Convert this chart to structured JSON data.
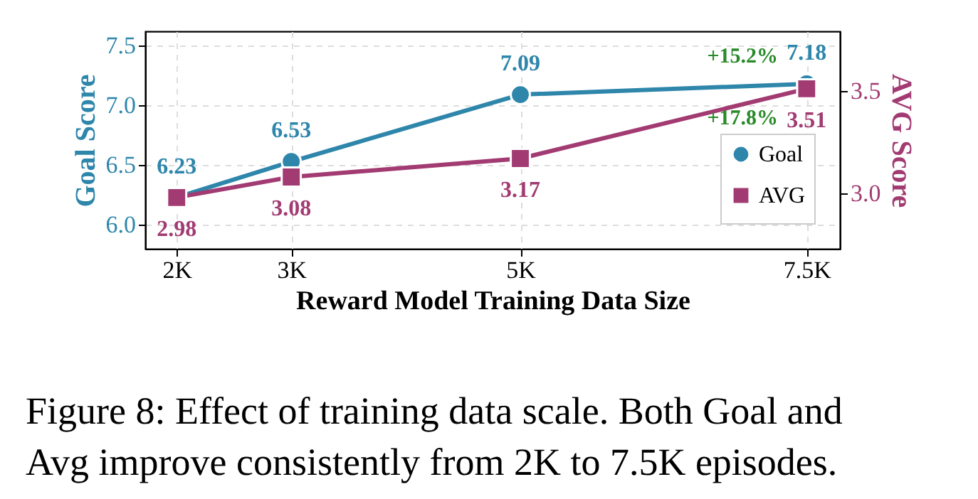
{
  "chart_data": {
    "type": "line",
    "xlabel": "Reward Model Training Data Size",
    "ylabel": "Goal Score",
    "y2label": "AVG Score",
    "x": [
      2000,
      3000,
      5000,
      7500
    ],
    "xlim": [
      1725,
      7790
    ],
    "xticks": [
      {
        "value": 2000,
        "label": "2K"
      },
      {
        "value": 3000,
        "label": "3K"
      },
      {
        "value": 5000,
        "label": "5K"
      },
      {
        "value": 7500,
        "label": "7.5K"
      }
    ],
    "ylim": [
      5.8,
      7.62
    ],
    "yticks": [
      {
        "value": 6,
        "label": "6.0"
      },
      6.5,
      {
        "value": 7,
        "label": "7.0"
      },
      7.5
    ],
    "y2lim": [
      2.73,
      3.79
    ],
    "y2ticks": [
      {
        "value": 3,
        "label": "3.0"
      },
      3.5
    ],
    "series": [
      {
        "name": "Goal",
        "color": "#2e86ab",
        "values": [
          6.23,
          6.53,
          7.09,
          7.18
        ],
        "marker": "circle"
      },
      {
        "name": "AVG",
        "color": "#a23b72",
        "values": [
          2.98,
          3.08,
          3.17,
          3.51
        ],
        "axis": "y2",
        "marker": "square"
      }
    ],
    "data_labels": true,
    "grid": true,
    "legend": "bottom right",
    "line_style": "solid",
    "annotations": [
      "+15.2%",
      "+17.8%",
      "Figure 8: Effect of training data scale. Both Goal and",
      "Avg improve consistently from 2K to 7.5K episodes."
    ]
  }
}
